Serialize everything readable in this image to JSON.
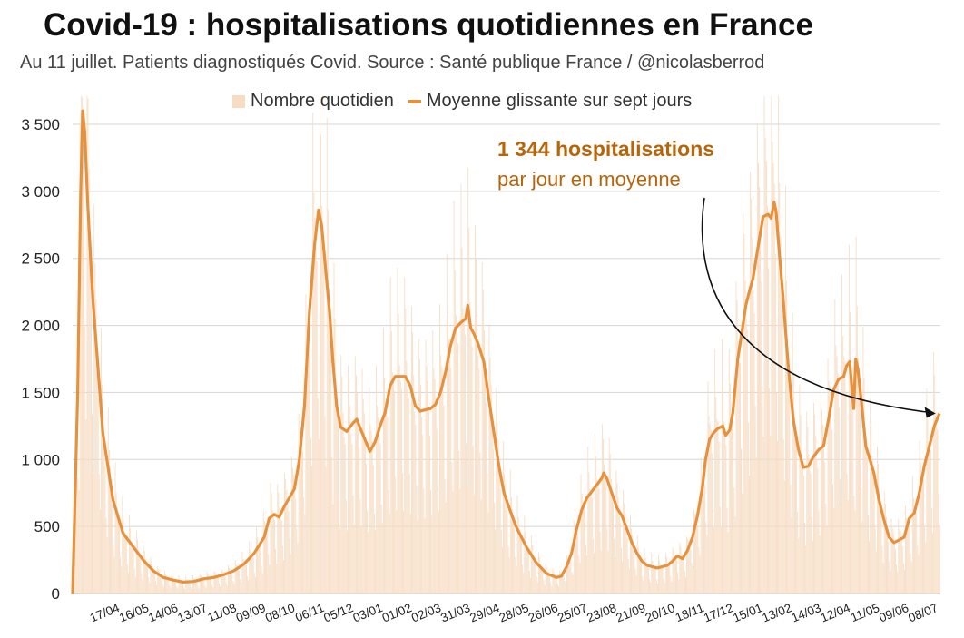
{
  "colors": {
    "bar": "#f7dcc3",
    "line": "#e8913c",
    "annotation": "#b8650a",
    "grid": "#d5d5d5"
  },
  "chart_data": {
    "type": "bar+line",
    "title": "Covid-19 : hospitalisations quotidiennes en France",
    "subtitle": "Au 11 juillet. Patients diagnostiqués Covid. Source : Santé publique France / @nicolasberrod",
    "legend": {
      "bars": "Nombre quotidien",
      "line": "Moyenne glissante sur sept jours",
      "position": "top"
    },
    "ylim": [
      0,
      3500
    ],
    "yticks": [
      {
        "value": 0,
        "label": "0"
      },
      {
        "value": 500,
        "label": "500"
      },
      {
        "value": 1000,
        "label": "1 000"
      },
      {
        "value": 1500,
        "label": "1 500"
      },
      {
        "value": 2000,
        "label": "2 000"
      },
      {
        "value": 2500,
        "label": "2 500"
      },
      {
        "value": 3000,
        "label": "3 000"
      },
      {
        "value": 3500,
        "label": "3 500"
      }
    ],
    "x_start": "2020-03-18",
    "x_end": "2021-07-11",
    "xticks": [
      {
        "day": 30,
        "label": "17/04"
      },
      {
        "day": 59,
        "label": "16/05"
      },
      {
        "day": 88,
        "label": "14/06"
      },
      {
        "day": 117,
        "label": "13/07"
      },
      {
        "day": 146,
        "label": "11/08"
      },
      {
        "day": 175,
        "label": "09/09"
      },
      {
        "day": 204,
        "label": "08/10"
      },
      {
        "day": 233,
        "label": "06/11"
      },
      {
        "day": 262,
        "label": "05/12"
      },
      {
        "day": 291,
        "label": "03/01"
      },
      {
        "day": 320,
        "label": "01/02"
      },
      {
        "day": 349,
        "label": "02/03"
      },
      {
        "day": 378,
        "label": "31/03"
      },
      {
        "day": 407,
        "label": "29/04"
      },
      {
        "day": 436,
        "label": "28/05"
      },
      {
        "day": 465,
        "label": "26/06"
      },
      {
        "day": 494,
        "label": "25/07"
      },
      {
        "day": 523,
        "label": "23/08"
      },
      {
        "day": 552,
        "label": "21/09"
      },
      {
        "day": 581,
        "label": "20/10"
      },
      {
        "day": 610,
        "label": "18/11"
      },
      {
        "day": 639,
        "label": "17/12"
      },
      {
        "day": 668,
        "label": "15/01"
      },
      {
        "day": 697,
        "label": "13/02"
      },
      {
        "day": 726,
        "label": "14/03"
      },
      {
        "day": 755,
        "label": "12/04"
      },
      {
        "day": 784,
        "label": "11/05"
      },
      {
        "day": 813,
        "label": "09/06"
      },
      {
        "day": 842,
        "label": "08/07"
      }
    ],
    "series": [
      {
        "name": "Moyenne glissante sur sept jours",
        "type": "line",
        "points": [
          [
            0,
            0
          ],
          [
            5,
            1500
          ],
          [
            8,
            3000
          ],
          [
            10,
            3600
          ],
          [
            12,
            3450
          ],
          [
            15,
            2900
          ],
          [
            20,
            2200
          ],
          [
            25,
            1700
          ],
          [
            30,
            1200
          ],
          [
            40,
            700
          ],
          [
            50,
            450
          ],
          [
            60,
            350
          ],
          [
            70,
            250
          ],
          [
            80,
            170
          ],
          [
            90,
            120
          ],
          [
            100,
            100
          ],
          [
            110,
            85
          ],
          [
            120,
            90
          ],
          [
            130,
            110
          ],
          [
            140,
            120
          ],
          [
            150,
            140
          ],
          [
            160,
            170
          ],
          [
            170,
            220
          ],
          [
            180,
            300
          ],
          [
            190,
            420
          ],
          [
            195,
            560
          ],
          [
            200,
            590
          ],
          [
            205,
            570
          ],
          [
            210,
            650
          ],
          [
            220,
            780
          ],
          [
            225,
            1000
          ],
          [
            230,
            1400
          ],
          [
            235,
            2100
          ],
          [
            240,
            2600
          ],
          [
            244,
            2860
          ],
          [
            247,
            2750
          ],
          [
            250,
            2500
          ],
          [
            255,
            2100
          ],
          [
            258,
            1750
          ],
          [
            262,
            1400
          ],
          [
            266,
            1240
          ],
          [
            272,
            1210
          ],
          [
            278,
            1270
          ],
          [
            282,
            1300
          ],
          [
            285,
            1240
          ],
          [
            290,
            1150
          ],
          [
            295,
            1060
          ],
          [
            300,
            1130
          ],
          [
            305,
            1250
          ],
          [
            310,
            1350
          ],
          [
            315,
            1550
          ],
          [
            320,
            1620
          ],
          [
            330,
            1620
          ],
          [
            335,
            1550
          ],
          [
            340,
            1400
          ],
          [
            345,
            1360
          ],
          [
            350,
            1370
          ],
          [
            355,
            1380
          ],
          [
            360,
            1410
          ],
          [
            365,
            1500
          ],
          [
            370,
            1650
          ],
          [
            375,
            1850
          ],
          [
            380,
            1980
          ],
          [
            385,
            2020
          ],
          [
            390,
            2050
          ],
          [
            392,
            2150
          ],
          [
            395,
            1980
          ],
          [
            398,
            1940
          ],
          [
            402,
            1870
          ],
          [
            408,
            1730
          ],
          [
            412,
            1500
          ],
          [
            418,
            1200
          ],
          [
            423,
            950
          ],
          [
            428,
            750
          ],
          [
            435,
            600
          ],
          [
            440,
            500
          ],
          [
            450,
            350
          ],
          [
            460,
            230
          ],
          [
            470,
            150
          ],
          [
            480,
            120
          ],
          [
            485,
            130
          ],
          [
            490,
            200
          ],
          [
            495,
            300
          ],
          [
            500,
            480
          ],
          [
            505,
            620
          ],
          [
            510,
            710
          ],
          [
            515,
            760
          ],
          [
            520,
            810
          ],
          [
            525,
            860
          ],
          [
            527,
            900
          ],
          [
            530,
            860
          ],
          [
            535,
            750
          ],
          [
            540,
            640
          ],
          [
            545,
            580
          ],
          [
            550,
            480
          ],
          [
            555,
            380
          ],
          [
            560,
            300
          ],
          [
            565,
            240
          ],
          [
            570,
            210
          ],
          [
            580,
            190
          ],
          [
            590,
            210
          ],
          [
            595,
            240
          ],
          [
            600,
            280
          ],
          [
            605,
            260
          ],
          [
            610,
            320
          ],
          [
            615,
            420
          ],
          [
            620,
            580
          ],
          [
            625,
            800
          ],
          [
            628,
            1000
          ],
          [
            632,
            1150
          ],
          [
            636,
            1200
          ],
          [
            640,
            1230
          ],
          [
            645,
            1250
          ],
          [
            648,
            1180
          ],
          [
            652,
            1220
          ],
          [
            655,
            1350
          ],
          [
            660,
            1750
          ],
          [
            665,
            2000
          ],
          [
            668,
            2150
          ],
          [
            672,
            2270
          ],
          [
            675,
            2350
          ],
          [
            680,
            2580
          ],
          [
            685,
            2810
          ],
          [
            690,
            2830
          ],
          [
            693,
            2800
          ],
          [
            696,
            2920
          ],
          [
            698,
            2850
          ],
          [
            700,
            2650
          ],
          [
            705,
            2200
          ],
          [
            710,
            1700
          ],
          [
            715,
            1300
          ],
          [
            720,
            1080
          ],
          [
            725,
            940
          ],
          [
            730,
            950
          ],
          [
            735,
            1020
          ],
          [
            740,
            1070
          ],
          [
            745,
            1100
          ],
          [
            750,
            1300
          ],
          [
            755,
            1520
          ],
          [
            760,
            1600
          ],
          [
            765,
            1620
          ],
          [
            768,
            1700
          ],
          [
            771,
            1730
          ],
          [
            773,
            1550
          ],
          [
            775,
            1380
          ],
          [
            777,
            1750
          ],
          [
            779,
            1680
          ],
          [
            783,
            1400
          ],
          [
            787,
            1100
          ],
          [
            791,
            1000
          ],
          [
            795,
            900
          ],
          [
            800,
            700
          ],
          [
            805,
            550
          ],
          [
            810,
            420
          ],
          [
            815,
            380
          ],
          [
            820,
            400
          ],
          [
            825,
            420
          ],
          [
            830,
            560
          ],
          [
            835,
            600
          ],
          [
            840,
            750
          ],
          [
            845,
            950
          ],
          [
            850,
            1100
          ],
          [
            855,
            1250
          ],
          [
            860,
            1344
          ]
        ]
      }
    ],
    "bars_note": "Daily bars follow the moving average with weekly oscillation; peaks ~3 800 (Apr 2020), ~3 600 (Nov 2020), ~2 500 (Apr 2021).",
    "annotation": {
      "line1": "1 344 hospitalisations",
      "line2": "par jour en moyenne",
      "target_day": 858,
      "target_value": 1344
    }
  }
}
